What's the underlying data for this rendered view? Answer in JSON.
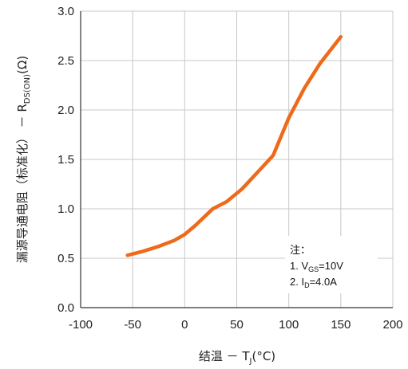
{
  "chart_data": {
    "type": "line",
    "xlabel": {
      "main": "结温 － T",
      "sub": "J",
      "unit": "(°C)"
    },
    "ylabel": {
      "main": "漏源导通电阻（标准化） － R",
      "sub": "DS(ON)",
      "unit": "(Ω)"
    },
    "xlim": [
      -100,
      200
    ],
    "ylim": [
      0.0,
      3.0
    ],
    "x_ticks": [
      "-100",
      "-50",
      "0",
      "50",
      "100",
      "150",
      "200"
    ],
    "y_ticks": [
      "0.0",
      "0.5",
      "1.0",
      "1.5",
      "2.0",
      "2.5",
      "3.0"
    ],
    "grid": true,
    "series": [
      {
        "color": "#ee6a1a",
        "points": [
          [
            -55,
            0.53
          ],
          [
            -40,
            0.57
          ],
          [
            -25,
            0.62
          ],
          [
            -10,
            0.68
          ],
          [
            0,
            0.74
          ],
          [
            10,
            0.83
          ],
          [
            20,
            0.93
          ],
          [
            27,
            1.0
          ],
          [
            40,
            1.07
          ],
          [
            55,
            1.2
          ],
          [
            70,
            1.37
          ],
          [
            85,
            1.54
          ],
          [
            100,
            1.92
          ],
          [
            115,
            2.22
          ],
          [
            130,
            2.47
          ],
          [
            150,
            2.74
          ]
        ]
      }
    ],
    "legend_box": {
      "title": "注：",
      "lines": [
        {
          "prefix": "1. V",
          "sub": "GS",
          "suffix": "=10V"
        },
        {
          "prefix": "2. I",
          "sub": "D",
          "suffix": "=4.0A"
        }
      ]
    }
  }
}
